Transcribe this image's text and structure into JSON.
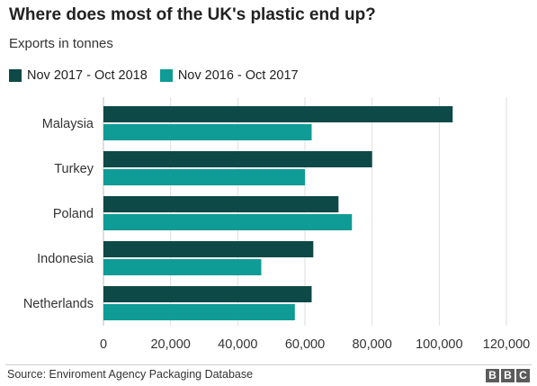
{
  "header": {
    "title": "Where does most of the UK's plastic end up?",
    "subtitle": "Exports in tonnes"
  },
  "legend": {
    "items": [
      {
        "label": "Nov 2017 - Oct 2018",
        "color": "#0d4a47"
      },
      {
        "label": "Nov 2016 - Oct 2017",
        "color": "#0f9b96"
      }
    ]
  },
  "footer": {
    "source": "Source: Enviroment Agency Packaging Database",
    "logo": [
      "B",
      "B",
      "C"
    ]
  },
  "chart_data": {
    "type": "bar",
    "orientation": "horizontal",
    "title": "Where does most of the UK's plastic end up?",
    "subtitle": "Exports in tonnes",
    "categories": [
      "Malaysia",
      "Turkey",
      "Poland",
      "Indonesia",
      "Netherlands"
    ],
    "series": [
      {
        "name": "Nov 2017 - Oct 2018",
        "color": "#0d4a47",
        "values": [
          104000,
          80000,
          70000,
          62500,
          62000
        ]
      },
      {
        "name": "Nov 2016 - Oct 2017",
        "color": "#0f9b96",
        "values": [
          62000,
          60000,
          74000,
          47000,
          57000
        ]
      }
    ],
    "xlim": [
      0,
      120000
    ],
    "xticks": [
      0,
      20000,
      40000,
      60000,
      80000,
      100000,
      120000
    ],
    "xtick_labels": [
      "0",
      "20,000",
      "40,000",
      "60,000",
      "80,000",
      "100,000",
      "120,000"
    ],
    "grid": true,
    "legend_position": "top-left"
  }
}
